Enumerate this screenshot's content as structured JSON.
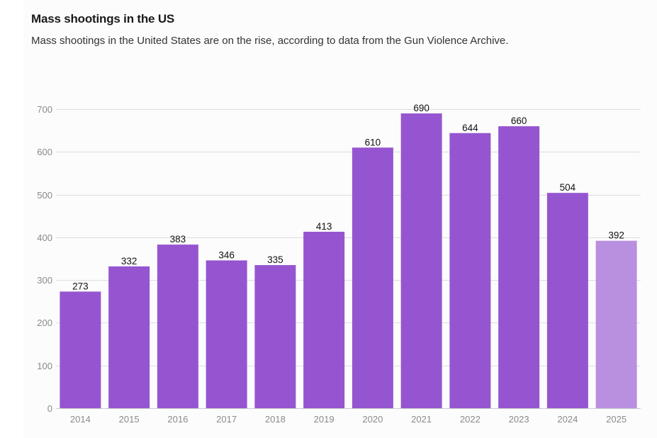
{
  "header": {
    "title": "Mass shootings in the US",
    "subtitle": "Mass shootings in the United States are on the rise, according to data from the Gun Violence Archive."
  },
  "chart_data": {
    "type": "bar",
    "title": "Mass shootings in the US",
    "subtitle": "Mass shootings in the United States are on the rise, according to data from the Gun Violence Archive.",
    "categories": [
      "2014",
      "2015",
      "2016",
      "2017",
      "2018",
      "2019",
      "2020",
      "2021",
      "2022",
      "2023",
      "2024",
      "2025"
    ],
    "values": [
      273,
      332,
      383,
      346,
      335,
      413,
      610,
      690,
      644,
      660,
      504,
      392
    ],
    "highlight": [
      "normal",
      "normal",
      "normal",
      "normal",
      "normal",
      "normal",
      "normal",
      "normal",
      "normal",
      "normal",
      "normal",
      "partial"
    ],
    "colors": {
      "bar": "#9655d0",
      "bar_partial": "#b98fe0",
      "grid": "#dddddd",
      "axis_text": "#8a8a8a",
      "label_text": "#111111"
    },
    "yticks": [
      0,
      100,
      200,
      300,
      400,
      500,
      600,
      700
    ],
    "ylim": [
      0,
      700
    ],
    "xlabel": "",
    "ylabel": "",
    "grid": true,
    "data_labels": true
  }
}
